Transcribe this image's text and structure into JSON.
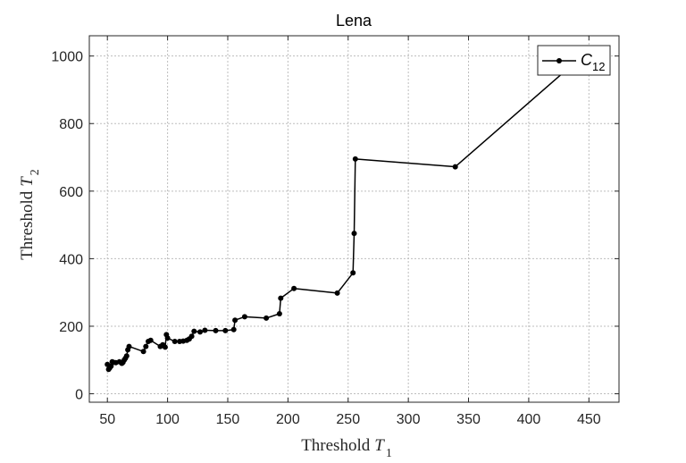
{
  "chart_data": {
    "type": "line",
    "title": "Lena",
    "xlabel": "Threshold",
    "xlabel_var": "T",
    "xlabel_sub": "1",
    "ylabel": "Threshold",
    "ylabel_var": "T",
    "ylabel_sub": "2",
    "xlim": [
      35,
      475
    ],
    "ylim": [
      -25,
      1060
    ],
    "xticks": [
      50,
      100,
      150,
      200,
      250,
      300,
      350,
      400,
      450
    ],
    "yticks": [
      0,
      200,
      400,
      600,
      800,
      1000
    ],
    "grid": true,
    "legend_position": "top-right",
    "series": [
      {
        "name": "C",
        "name_sub": "12",
        "color": "#000000",
        "x": [
          50,
          51,
          52,
          53,
          54,
          55,
          57,
          60,
          62,
          63,
          64,
          65,
          66,
          67,
          68,
          80,
          82,
          84,
          86,
          94,
          96,
          98,
          99,
          100,
          106,
          110,
          113,
          116,
          118,
          120,
          122,
          127,
          131,
          140,
          148,
          155,
          156,
          164,
          182,
          193,
          194,
          205,
          241,
          254,
          255,
          256,
          339,
          430
        ],
        "y": [
          87,
          72,
          77,
          82,
          95,
          93,
          92,
          95,
          90,
          93,
          100,
          105,
          112,
          130,
          140,
          125,
          140,
          155,
          158,
          140,
          145,
          138,
          175,
          165,
          155,
          155,
          156,
          158,
          162,
          170,
          185,
          183,
          188,
          187,
          187,
          190,
          218,
          228,
          224,
          237,
          283,
          312,
          298,
          358,
          475,
          695,
          672,
          955
        ]
      }
    ]
  }
}
